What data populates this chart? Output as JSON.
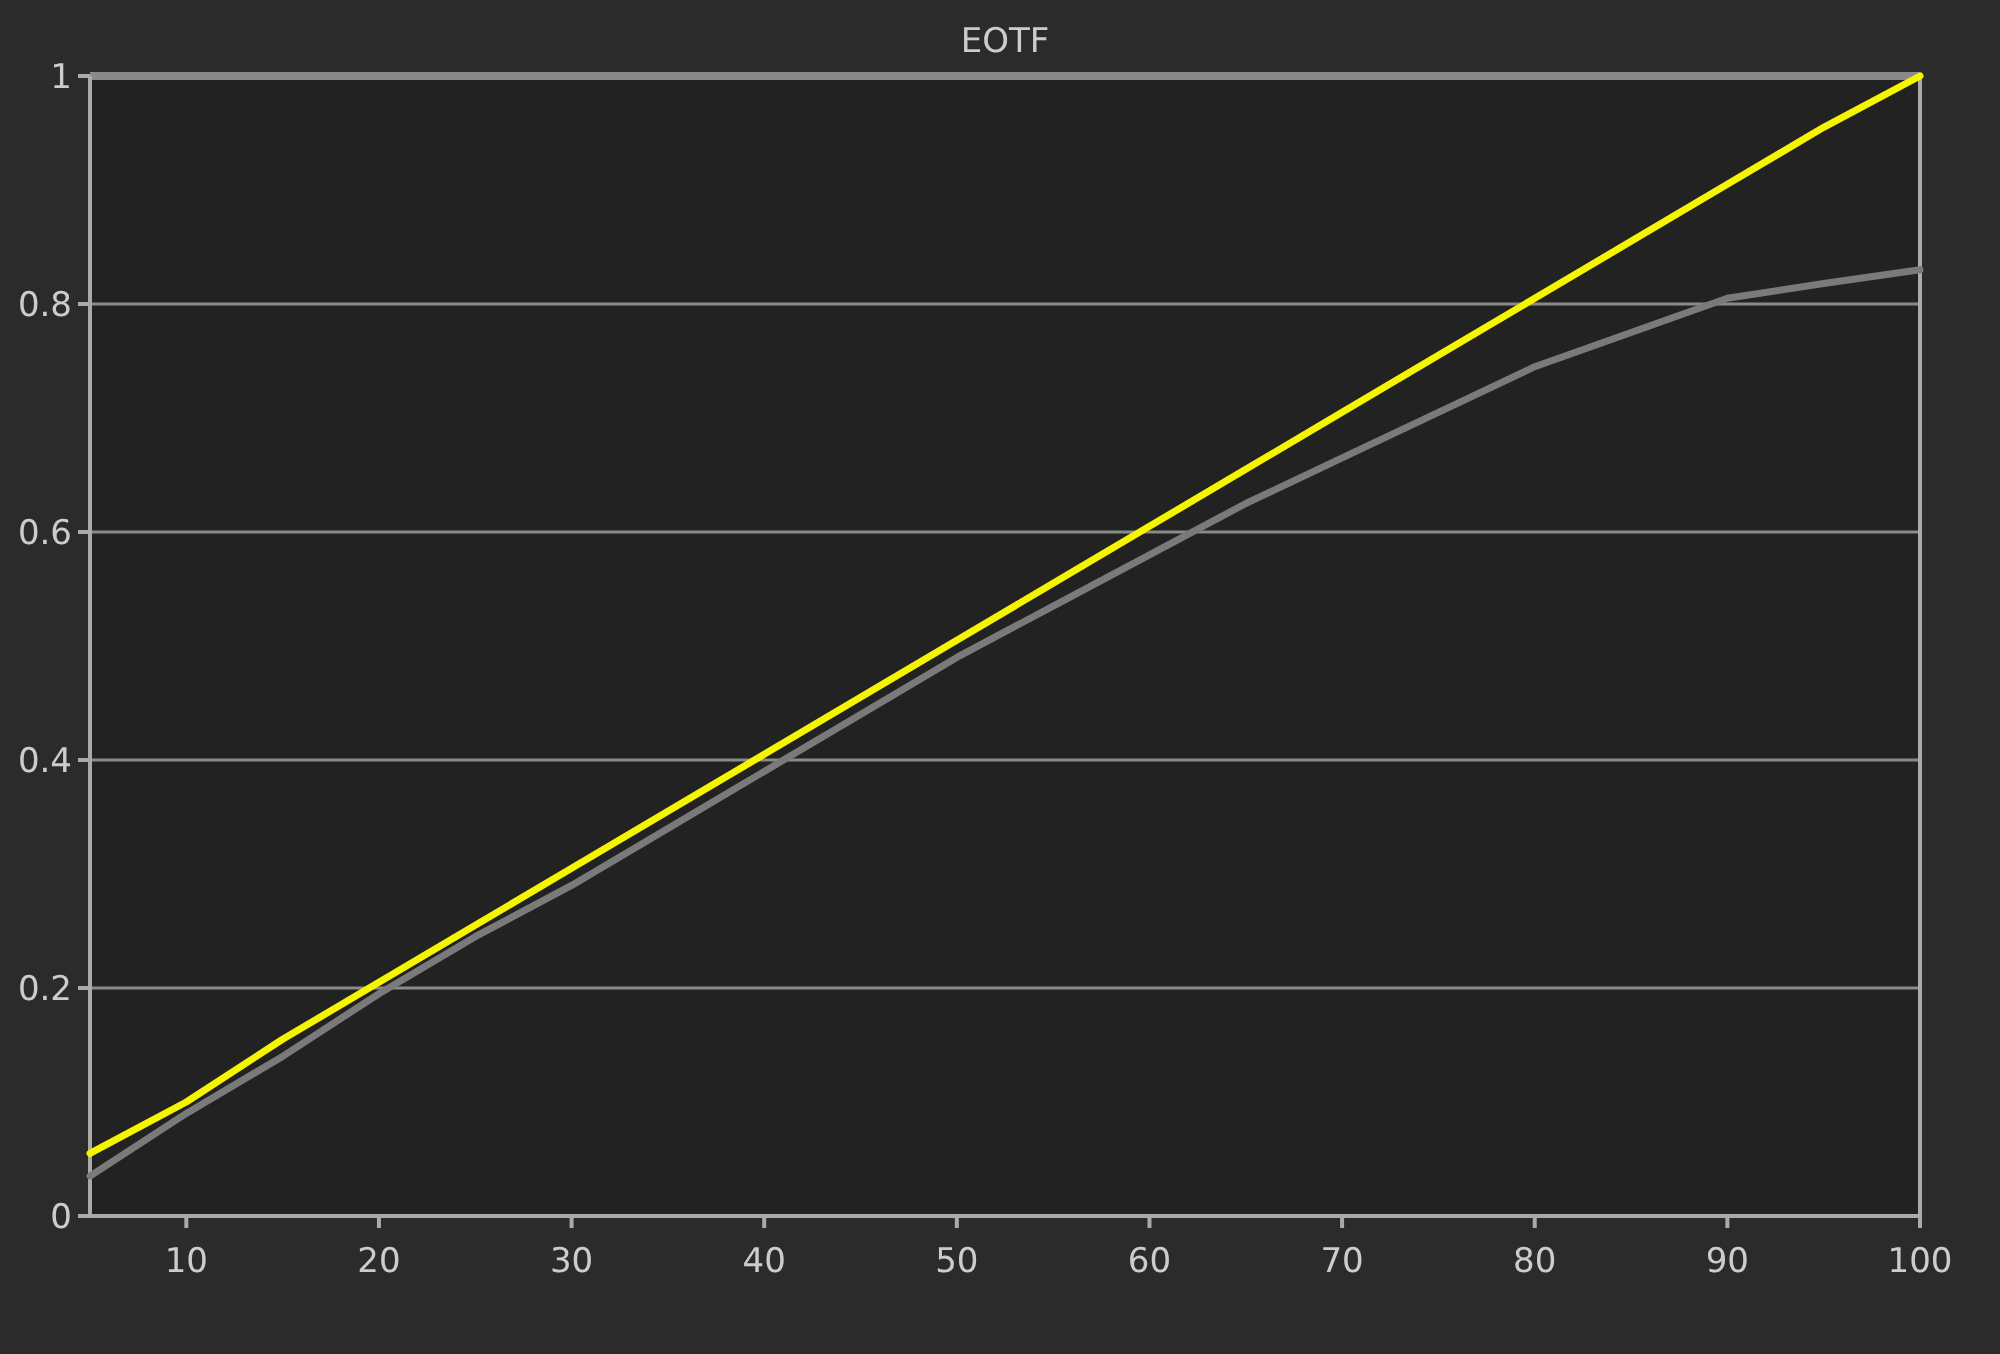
{
  "chart_data": {
    "type": "line",
    "title": "EOTF",
    "xlim": [
      5,
      100
    ],
    "xticks": [
      10,
      20,
      30,
      40,
      50,
      60,
      70,
      80,
      90,
      100
    ],
    "ylim": [
      0,
      1
    ],
    "yticks": [
      0,
      0.2,
      0.4,
      0.6,
      0.8,
      1
    ],
    "grid": "y",
    "marker": "none",
    "line_style": "solid",
    "series": [
      {
        "color": "#7a7a7a",
        "x": [
          5,
          10,
          15,
          20,
          25,
          30,
          35,
          40,
          45,
          50,
          55,
          60,
          65,
          70,
          75,
          80,
          85,
          90,
          95,
          100
        ],
        "values": [
          0.035,
          0.09,
          0.14,
          0.195,
          0.245,
          0.29,
          0.34,
          0.39,
          0.44,
          0.49,
          0.535,
          0.58,
          0.625,
          0.665,
          0.705,
          0.745,
          0.775,
          0.805,
          0.818,
          0.83
        ]
      },
      {
        "color": "#f5f500",
        "x": [
          5,
          10,
          15,
          20,
          25,
          30,
          35,
          40,
          45,
          50,
          55,
          60,
          65,
          70,
          75,
          80,
          85,
          90,
          95,
          100
        ],
        "values": [
          0.055,
          0.1,
          0.155,
          0.205,
          0.255,
          0.305,
          0.355,
          0.405,
          0.455,
          0.505,
          0.555,
          0.605,
          0.655,
          0.705,
          0.755,
          0.805,
          0.855,
          0.905,
          0.955,
          1.0
        ]
      }
    ]
  }
}
